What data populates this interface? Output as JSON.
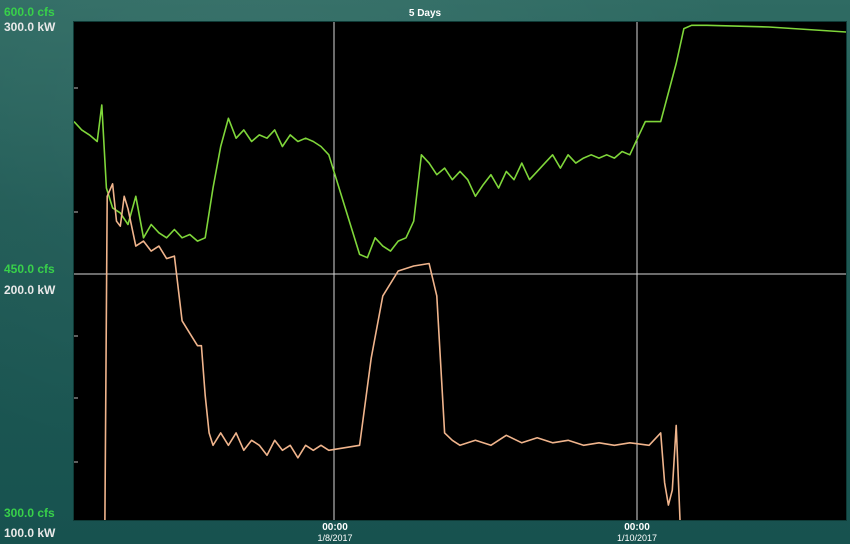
{
  "chart_data": {
    "type": "line",
    "title": "5 Days",
    "x_ticks": [
      {
        "time": "00:00",
        "date": "1/8/2017"
      },
      {
        "time": "00:00",
        "date": "1/10/2017"
      }
    ],
    "y_left_labels": {
      "flow": [
        "600.0 cfs",
        "450.0 cfs",
        "300.0 cfs"
      ],
      "power": [
        "300.0 kW",
        "200.0 kW",
        "100.0 kW"
      ]
    },
    "flow_range": [
      300,
      600
    ],
    "power_range": [
      100,
      300
    ],
    "x_range": [
      0,
      1
    ],
    "grid": true,
    "series": [
      {
        "units": "cfs",
        "color": "#7fd63a",
        "points": [
          [
            0.0,
            540
          ],
          [
            0.01,
            535
          ],
          [
            0.02,
            532
          ],
          [
            0.03,
            528
          ],
          [
            0.036,
            550
          ],
          [
            0.042,
            500
          ],
          [
            0.05,
            488
          ],
          [
            0.06,
            485
          ],
          [
            0.07,
            478
          ],
          [
            0.08,
            495
          ],
          [
            0.09,
            470
          ],
          [
            0.1,
            478
          ],
          [
            0.11,
            473
          ],
          [
            0.12,
            470
          ],
          [
            0.13,
            475
          ],
          [
            0.14,
            470
          ],
          [
            0.15,
            472
          ],
          [
            0.16,
            468
          ],
          [
            0.17,
            470
          ],
          [
            0.18,
            500
          ],
          [
            0.19,
            525
          ],
          [
            0.2,
            542
          ],
          [
            0.21,
            530
          ],
          [
            0.22,
            535
          ],
          [
            0.23,
            528
          ],
          [
            0.24,
            532
          ],
          [
            0.25,
            530
          ],
          [
            0.26,
            535
          ],
          [
            0.27,
            525
          ],
          [
            0.28,
            532
          ],
          [
            0.29,
            528
          ],
          [
            0.3,
            530
          ],
          [
            0.31,
            528
          ],
          [
            0.32,
            525
          ],
          [
            0.33,
            520
          ],
          [
            0.34,
            505
          ],
          [
            0.35,
            490
          ],
          [
            0.36,
            475
          ],
          [
            0.37,
            460
          ],
          [
            0.38,
            458
          ],
          [
            0.39,
            470
          ],
          [
            0.4,
            465
          ],
          [
            0.41,
            462
          ],
          [
            0.42,
            468
          ],
          [
            0.43,
            470
          ],
          [
            0.44,
            480
          ],
          [
            0.45,
            520
          ],
          [
            0.46,
            515
          ],
          [
            0.47,
            508
          ],
          [
            0.48,
            512
          ],
          [
            0.49,
            505
          ],
          [
            0.5,
            510
          ],
          [
            0.51,
            505
          ],
          [
            0.52,
            495
          ],
          [
            0.53,
            502
          ],
          [
            0.54,
            508
          ],
          [
            0.55,
            500
          ],
          [
            0.56,
            510
          ],
          [
            0.57,
            505
          ],
          [
            0.58,
            515
          ],
          [
            0.59,
            505
          ],
          [
            0.6,
            510
          ],
          [
            0.61,
            515
          ],
          [
            0.62,
            520
          ],
          [
            0.63,
            512
          ],
          [
            0.64,
            520
          ],
          [
            0.65,
            515
          ],
          [
            0.66,
            518
          ],
          [
            0.67,
            520
          ],
          [
            0.68,
            518
          ],
          [
            0.69,
            520
          ],
          [
            0.7,
            518
          ],
          [
            0.71,
            522
          ],
          [
            0.72,
            520
          ],
          [
            0.74,
            540
          ],
          [
            0.76,
            540
          ],
          [
            0.78,
            575
          ],
          [
            0.79,
            596
          ],
          [
            0.8,
            598
          ],
          [
            0.82,
            598
          ],
          [
            0.9,
            597
          ],
          [
            1.0,
            594
          ]
        ]
      },
      {
        "units": "kW",
        "color": "#f0b48c",
        "points": [
          [
            0.04,
            100
          ],
          [
            0.043,
            230
          ],
          [
            0.05,
            235
          ],
          [
            0.055,
            220
          ],
          [
            0.06,
            218
          ],
          [
            0.065,
            230
          ],
          [
            0.07,
            225
          ],
          [
            0.08,
            210
          ],
          [
            0.09,
            212
          ],
          [
            0.1,
            208
          ],
          [
            0.11,
            210
          ],
          [
            0.12,
            205
          ],
          [
            0.13,
            206
          ],
          [
            0.14,
            180
          ],
          [
            0.15,
            175
          ],
          [
            0.16,
            170
          ],
          [
            0.165,
            170
          ],
          [
            0.17,
            150
          ],
          [
            0.175,
            135
          ],
          [
            0.18,
            130
          ],
          [
            0.19,
            135
          ],
          [
            0.2,
            130
          ],
          [
            0.21,
            135
          ],
          [
            0.22,
            128
          ],
          [
            0.23,
            132
          ],
          [
            0.24,
            130
          ],
          [
            0.25,
            126
          ],
          [
            0.26,
            132
          ],
          [
            0.27,
            128
          ],
          [
            0.28,
            130
          ],
          [
            0.29,
            125
          ],
          [
            0.3,
            130
          ],
          [
            0.31,
            128
          ],
          [
            0.32,
            130
          ],
          [
            0.33,
            128
          ],
          [
            0.37,
            130
          ],
          [
            0.385,
            165
          ],
          [
            0.4,
            190
          ],
          [
            0.42,
            200
          ],
          [
            0.44,
            202
          ],
          [
            0.46,
            203
          ],
          [
            0.47,
            190
          ],
          [
            0.48,
            135
          ],
          [
            0.49,
            132
          ],
          [
            0.5,
            130
          ],
          [
            0.52,
            132
          ],
          [
            0.54,
            130
          ],
          [
            0.56,
            134
          ],
          [
            0.58,
            131
          ],
          [
            0.6,
            133
          ],
          [
            0.62,
            131
          ],
          [
            0.64,
            132
          ],
          [
            0.66,
            130
          ],
          [
            0.68,
            131
          ],
          [
            0.7,
            130
          ],
          [
            0.72,
            131
          ],
          [
            0.745,
            130
          ],
          [
            0.76,
            135
          ],
          [
            0.765,
            115
          ],
          [
            0.77,
            106
          ],
          [
            0.775,
            112
          ],
          [
            0.78,
            138
          ],
          [
            0.785,
            100
          ]
        ]
      }
    ]
  }
}
